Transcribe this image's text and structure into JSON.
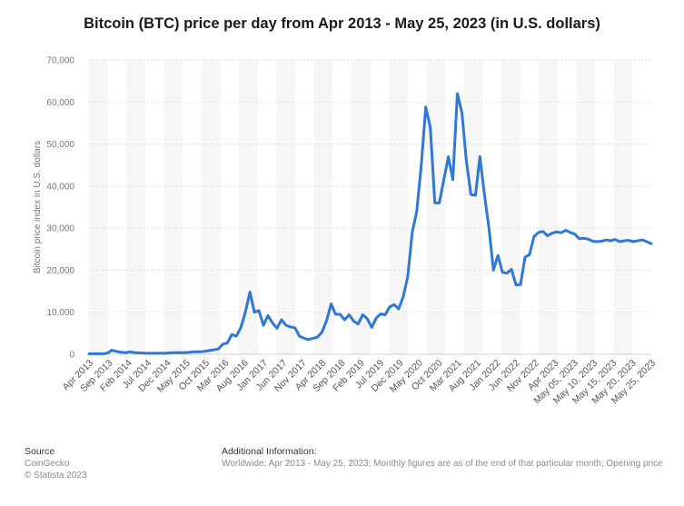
{
  "chart_data": {
    "type": "line",
    "title": "Bitcoin (BTC) price per day from Apr 2013 - May 25, 2023 (in U.S. dollars)",
    "xlabel": "",
    "ylabel": "Bitcoin price index in U.S. dollars",
    "ylim": [
      0,
      70000
    ],
    "yticks": [
      0,
      10000,
      20000,
      30000,
      40000,
      50000,
      60000,
      70000
    ],
    "ytick_labels": [
      "0",
      "10,000",
      "20,000",
      "30,000",
      "40,000",
      "50,000",
      "60,000",
      "70,000"
    ],
    "xtick_labels": [
      "Apr 2013",
      "Sep 2013",
      "Feb 2014",
      "Jul 2014",
      "Dec 2014",
      "May 2015",
      "Oct 2015",
      "Mar 2016",
      "Aug 2016",
      "Jan 2017",
      "Jun 2017",
      "Nov 2017",
      "Apr 2018",
      "Sep 2018",
      "Feb 2019",
      "Jul 2019",
      "Dec 2019",
      "May 2020",
      "Oct 2020",
      "Mar 2021",
      "Aug 2021",
      "Jan 2022",
      "Jun 2022",
      "Nov 2022",
      "Apr 2023",
      "May 05, 2023",
      "May 10, 2023",
      "May 15, 2023",
      "May 20, 2023",
      "May 25, 2023"
    ],
    "grid": true,
    "color": "#2f78d4",
    "series": [
      {
        "name": "Bitcoin price",
        "values": [
          [
            0,
            110
          ],
          [
            1.5,
            120
          ],
          [
            3,
            130
          ],
          [
            5,
            140
          ],
          [
            6.5,
            400
          ],
          [
            7.5,
            1000
          ],
          [
            8.5,
            800
          ],
          [
            9.5,
            620
          ],
          [
            11,
            450
          ],
          [
            12.5,
            380
          ],
          [
            13.5,
            600
          ],
          [
            15,
            400
          ],
          [
            16.5,
            340
          ],
          [
            18,
            300
          ],
          [
            19.5,
            230
          ],
          [
            21,
            240
          ],
          [
            23,
            260
          ],
          [
            25,
            240
          ],
          [
            27,
            350
          ],
          [
            29,
            400
          ],
          [
            31,
            380
          ],
          [
            33,
            450
          ],
          [
            35,
            580
          ],
          [
            37,
            600
          ],
          [
            38.5,
            700
          ],
          [
            40,
            920
          ],
          [
            41.5,
            1050
          ],
          [
            43,
            1250
          ],
          [
            44.5,
            2400
          ],
          [
            46,
            2700
          ],
          [
            47.5,
            4700
          ],
          [
            49,
            4300
          ],
          [
            50.5,
            6400
          ],
          [
            52,
            10000
          ],
          [
            53.5,
            14800
          ],
          [
            55,
            10000
          ],
          [
            56.5,
            10400
          ],
          [
            58,
            6900
          ],
          [
            59.5,
            9200
          ],
          [
            61,
            7500
          ],
          [
            62.5,
            6200
          ],
          [
            64,
            8200
          ],
          [
            65.5,
            6900
          ],
          [
            67,
            6500
          ],
          [
            68.5,
            6300
          ],
          [
            70,
            4300
          ],
          [
            71.5,
            3800
          ],
          [
            73,
            3500
          ],
          [
            74.5,
            3800
          ],
          [
            76,
            4100
          ],
          [
            77.5,
            5300
          ],
          [
            79,
            8000
          ],
          [
            80.5,
            12000
          ],
          [
            82,
            9500
          ],
          [
            83.5,
            9500
          ],
          [
            85,
            8200
          ],
          [
            86.5,
            9400
          ],
          [
            88,
            7900
          ],
          [
            89.5,
            7200
          ],
          [
            91,
            9400
          ],
          [
            92.5,
            8500
          ],
          [
            94,
            6400
          ],
          [
            95.5,
            8600
          ],
          [
            97,
            9600
          ],
          [
            98.5,
            9400
          ],
          [
            100,
            11300
          ],
          [
            101.5,
            11800
          ],
          [
            103,
            10800
          ],
          [
            104.5,
            13700
          ],
          [
            106,
            18500
          ],
          [
            107.5,
            29000
          ],
          [
            109,
            34000
          ],
          [
            110.5,
            45000
          ],
          [
            112,
            58800
          ],
          [
            113.5,
            54000
          ],
          [
            115,
            36000
          ],
          [
            116.5,
            36000
          ],
          [
            118,
            41500
          ],
          [
            119.5,
            47000
          ],
          [
            121,
            41500
          ],
          [
            122.5,
            62000
          ],
          [
            124,
            57500
          ],
          [
            125.5,
            46000
          ],
          [
            127,
            38000
          ],
          [
            128.5,
            37800
          ],
          [
            130,
            47000
          ],
          [
            131.5,
            38000
          ],
          [
            133,
            30000
          ],
          [
            134.5,
            20000
          ],
          [
            136,
            23500
          ],
          [
            137.5,
            19500
          ],
          [
            139,
            19300
          ],
          [
            140.5,
            20200
          ],
          [
            142,
            16500
          ],
          [
            143.5,
            16600
          ],
          [
            145,
            23100
          ],
          [
            146.5,
            23700
          ],
          [
            148,
            28000
          ],
          [
            149.5,
            29000
          ],
          [
            151,
            29200
          ],
          [
            152.5,
            28200
          ],
          [
            154,
            28800
          ],
          [
            155.5,
            29100
          ],
          [
            157,
            28900
          ],
          [
            158.5,
            29500
          ],
          [
            160,
            29000
          ],
          [
            161.5,
            28600
          ],
          [
            163,
            27500
          ],
          [
            164.5,
            27600
          ],
          [
            166,
            27400
          ],
          [
            167.5,
            26900
          ],
          [
            169,
            26800
          ],
          [
            170.5,
            26900
          ],
          [
            172,
            27200
          ],
          [
            173.5,
            27000
          ],
          [
            175,
            27300
          ],
          [
            176.5,
            26800
          ],
          [
            178,
            27000
          ],
          [
            179.5,
            27100
          ],
          [
            181,
            26800
          ],
          [
            182.5,
            27000
          ],
          [
            184,
            27200
          ],
          [
            185.5,
            26800
          ],
          [
            187,
            26300
          ]
        ]
      }
    ]
  },
  "footer": {
    "source_heading": "Source",
    "source_name": "CoinGecko",
    "copyright": "© Statista 2023",
    "info_heading": "Additional Information:",
    "info_text": "Worldwide; Apr 2013 - May 25, 2023; Monthly figures are as of the end of that particular month; Opening price"
  }
}
